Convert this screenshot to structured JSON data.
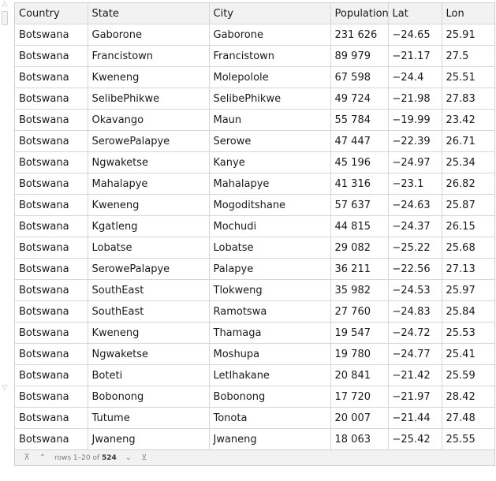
{
  "table": {
    "columns": [
      "Country",
      "State",
      "City",
      "Population",
      "Lat",
      "Lon"
    ],
    "rows": [
      [
        "Botswana",
        "Gaborone",
        "Gaborone",
        "231 626",
        "−24.65",
        "25.91"
      ],
      [
        "Botswana",
        "Francistown",
        "Francistown",
        "89 979",
        "−21.17",
        "27.5"
      ],
      [
        "Botswana",
        "Kweneng",
        "Molepolole",
        "67 598",
        "−24.4",
        "25.51"
      ],
      [
        "Botswana",
        "SelibePhikwe",
        "SelibePhikwe",
        "49 724",
        "−21.98",
        "27.83"
      ],
      [
        "Botswana",
        "Okavango",
        "Maun",
        "55 784",
        "−19.99",
        "23.42"
      ],
      [
        "Botswana",
        "SerowePalapye",
        "Serowe",
        "47 447",
        "−22.39",
        "26.71"
      ],
      [
        "Botswana",
        "Ngwaketse",
        "Kanye",
        "45 196",
        "−24.97",
        "25.34"
      ],
      [
        "Botswana",
        "Mahalapye",
        "Mahalapye",
        "41 316",
        "−23.1",
        "26.82"
      ],
      [
        "Botswana",
        "Kweneng",
        "Mogoditshane",
        "57 637",
        "−24.63",
        "25.87"
      ],
      [
        "Botswana",
        "Kgatleng",
        "Mochudi",
        "44 815",
        "−24.37",
        "26.15"
      ],
      [
        "Botswana",
        "Lobatse",
        "Lobatse",
        "29 082",
        "−25.22",
        "25.68"
      ],
      [
        "Botswana",
        "SerowePalapye",
        "Palapye",
        "36 211",
        "−22.56",
        "27.13"
      ],
      [
        "Botswana",
        "SouthEast",
        "Tlokweng",
        "35 982",
        "−24.53",
        "25.97"
      ],
      [
        "Botswana",
        "SouthEast",
        "Ramotswa",
        "27 760",
        "−24.83",
        "25.84"
      ],
      [
        "Botswana",
        "Kweneng",
        "Thamaga",
        "19 547",
        "−24.72",
        "25.53"
      ],
      [
        "Botswana",
        "Ngwaketse",
        "Moshupa",
        "19 780",
        "−24.77",
        "25.41"
      ],
      [
        "Botswana",
        "Boteti",
        "Letlhakane",
        "20 841",
        "−21.42",
        "25.59"
      ],
      [
        "Botswana",
        "Bobonong",
        "Bobonong",
        "17 720",
        "−21.97",
        "28.42"
      ],
      [
        "Botswana",
        "Tutume",
        "Tonota",
        "20 007",
        "−21.44",
        "27.48"
      ],
      [
        "Botswana",
        "Jwaneng",
        "Jwaneng",
        "18 063",
        "−25.42",
        "25.55"
      ]
    ]
  },
  "pager": {
    "range_text": "rows 1–20 of",
    "total": "524",
    "icons": [
      "first-page-icon",
      "previous-page-icon",
      "next-page-icon",
      "last-page-icon"
    ]
  },
  "scrollbar": {
    "icons": [
      "scroll-up-arrow-icon",
      "scroll-down-arrow-icon"
    ]
  }
}
